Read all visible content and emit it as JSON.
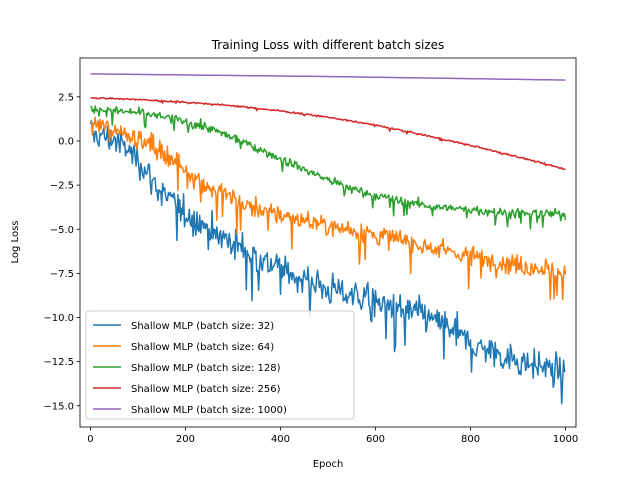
{
  "chart_data": {
    "type": "line",
    "title": "Training Loss with different batch sizes",
    "xlabel": "Epoch",
    "ylabel": "Log Loss",
    "xlim": [
      -22,
      1022
    ],
    "ylim": [
      -16.2,
      4.7
    ],
    "xticks": [
      0,
      200,
      400,
      600,
      800,
      1000
    ],
    "xtick_labels": [
      "0",
      "200",
      "400",
      "600",
      "800",
      "1000"
    ],
    "yticks": [
      2.5,
      0.0,
      -2.5,
      -5.0,
      -7.5,
      -10.0,
      -12.5,
      -15.0
    ],
    "ytick_labels": [
      "2.5",
      "0.0",
      "−2.5",
      "−5.0",
      "−7.5",
      "−10.0",
      "−12.5",
      "−15.0"
    ],
    "grid": false,
    "legend_position": "lower left",
    "series": [
      {
        "name": "Shallow MLP (batch size: 32)",
        "color": "#1f77b4",
        "noise": 1.3,
        "x": [
          0,
          50,
          100,
          150,
          200,
          250,
          300,
          350,
          400,
          450,
          500,
          550,
          600,
          650,
          700,
          750,
          800,
          850,
          900,
          950,
          1000
        ],
        "y": [
          0.4,
          0.1,
          -1.0,
          -3.0,
          -4.0,
          -5.0,
          -5.8,
          -6.5,
          -7.2,
          -7.8,
          -8.4,
          -8.7,
          -9.0,
          -9.5,
          -9.9,
          -10.4,
          -11.5,
          -12.0,
          -12.4,
          -12.8,
          -13.0
        ]
      },
      {
        "name": "Shallow MLP (batch size: 64)",
        "color": "#ff7f0e",
        "noise": 0.9,
        "x": [
          0,
          50,
          100,
          150,
          200,
          250,
          300,
          350,
          400,
          450,
          500,
          550,
          600,
          650,
          700,
          750,
          800,
          850,
          900,
          950,
          1000
        ],
        "y": [
          1.0,
          0.7,
          0.2,
          -0.6,
          -1.6,
          -2.6,
          -3.3,
          -3.8,
          -4.2,
          -4.5,
          -4.8,
          -5.0,
          -5.3,
          -5.6,
          -5.9,
          -6.2,
          -6.5,
          -6.8,
          -7.0,
          -7.2,
          -7.5
        ]
      },
      {
        "name": "Shallow MLP (batch size: 128)",
        "color": "#2ca02c",
        "noise": 0.4,
        "x": [
          0,
          50,
          100,
          150,
          200,
          250,
          300,
          350,
          400,
          450,
          500,
          550,
          600,
          650,
          700,
          750,
          800,
          850,
          900,
          950,
          1000
        ],
        "y": [
          1.8,
          1.7,
          1.6,
          1.4,
          1.1,
          0.7,
          0.2,
          -0.4,
          -1.0,
          -1.6,
          -2.2,
          -2.7,
          -3.1,
          -3.4,
          -3.6,
          -3.8,
          -3.9,
          -4.0,
          -4.1,
          -4.1,
          -4.2
        ]
      },
      {
        "name": "Shallow MLP (batch size: 256)",
        "color": "#d62728",
        "noise": 0.07,
        "x": [
          0,
          100,
          200,
          300,
          400,
          500,
          600,
          700,
          800,
          900,
          1000
        ],
        "y": [
          2.45,
          2.35,
          2.2,
          2.0,
          1.7,
          1.35,
          0.9,
          0.35,
          -0.25,
          -0.9,
          -1.6
        ]
      },
      {
        "name": "Shallow MLP (batch size: 1000)",
        "color": "#9467bd",
        "noise": 0.0,
        "x": [
          0,
          500,
          1000
        ],
        "y": [
          3.8,
          3.65,
          3.45
        ]
      }
    ]
  }
}
